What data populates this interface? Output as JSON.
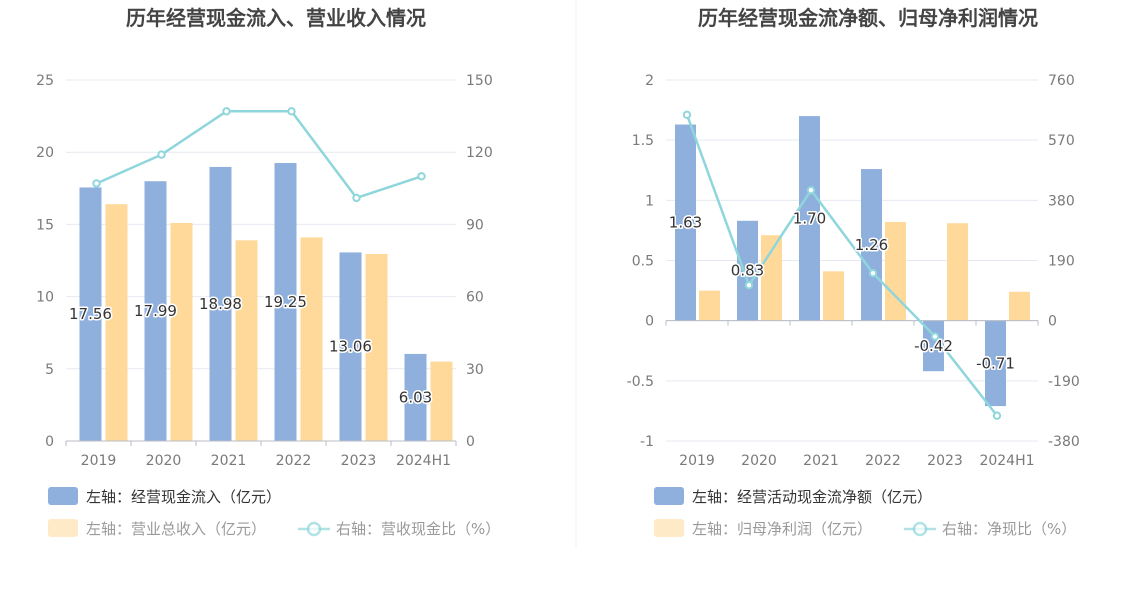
{
  "chart_data": [
    {
      "type": "bar",
      "title": "历年经营现金流入、营业收入情况",
      "categories": [
        "2019",
        "2020",
        "2021",
        "2022",
        "2023",
        "2024H1"
      ],
      "y_left": {
        "range": [
          0,
          25
        ],
        "ticks": [
          "0",
          "5",
          "10",
          "15",
          "20",
          "25"
        ]
      },
      "y_right": {
        "range": [
          0,
          150
        ],
        "ticks": [
          "0",
          "30",
          "60",
          "90",
          "120",
          "150"
        ]
      },
      "series": [
        {
          "name": "左轴：经营现金流入（亿元）",
          "kind": "bar",
          "axis": "left",
          "color": "#8fb0dd",
          "values": [
            17.56,
            17.99,
            18.98,
            19.25,
            13.06,
            6.03
          ],
          "labels": [
            "17.56",
            "17.99",
            "18.98",
            "19.25",
            "13.06",
            "6.03"
          ]
        },
        {
          "name": "左轴：营业总收入（亿元）",
          "kind": "bar",
          "axis": "left",
          "color": "#ffd99a",
          "values": [
            16.4,
            15.1,
            13.9,
            14.1,
            12.95,
            5.5
          ]
        },
        {
          "name": "右轴：营收现金比（%）",
          "kind": "line",
          "axis": "right",
          "color": "#8fd6dc",
          "values": [
            107,
            119,
            137,
            137,
            101,
            110
          ]
        }
      ],
      "grid": true,
      "legend_position": "bottom-left"
    },
    {
      "type": "bar",
      "title": "历年经营现金流净额、归母净利润情况",
      "categories": [
        "2019",
        "2020",
        "2021",
        "2022",
        "2023",
        "2024H1"
      ],
      "y_left": {
        "range": [
          -1,
          2
        ],
        "ticks": [
          "-1",
          "-0.5",
          "0",
          "0.5",
          "1",
          "1.5",
          "2"
        ]
      },
      "y_right": {
        "range": [
          -380,
          760
        ],
        "ticks": [
          "-380",
          "-190",
          "0",
          "190",
          "380",
          "570",
          "760"
        ]
      },
      "series": [
        {
          "name": "左轴：经营活动现金流净额（亿元）",
          "kind": "bar",
          "axis": "left",
          "color": "#8fb0dd",
          "values": [
            1.63,
            0.83,
            1.7,
            1.26,
            -0.42,
            -0.71
          ],
          "labels": [
            "1.63",
            "0.83",
            "1.70",
            "1.26",
            "-0.42",
            "-0.71"
          ]
        },
        {
          "name": "左轴：归母净利润（亿元）",
          "kind": "bar",
          "axis": "left",
          "color": "#ffd99a",
          "values": [
            0.25,
            0.71,
            0.41,
            0.82,
            0.81,
            0.24
          ]
        },
        {
          "name": "右轴：净现比（%）",
          "kind": "line",
          "axis": "right",
          "color": "#8fd6dc",
          "values": [
            650,
            112,
            412,
            150,
            -50,
            -300
          ]
        }
      ],
      "grid": true,
      "legend_position": "bottom-left"
    }
  ]
}
